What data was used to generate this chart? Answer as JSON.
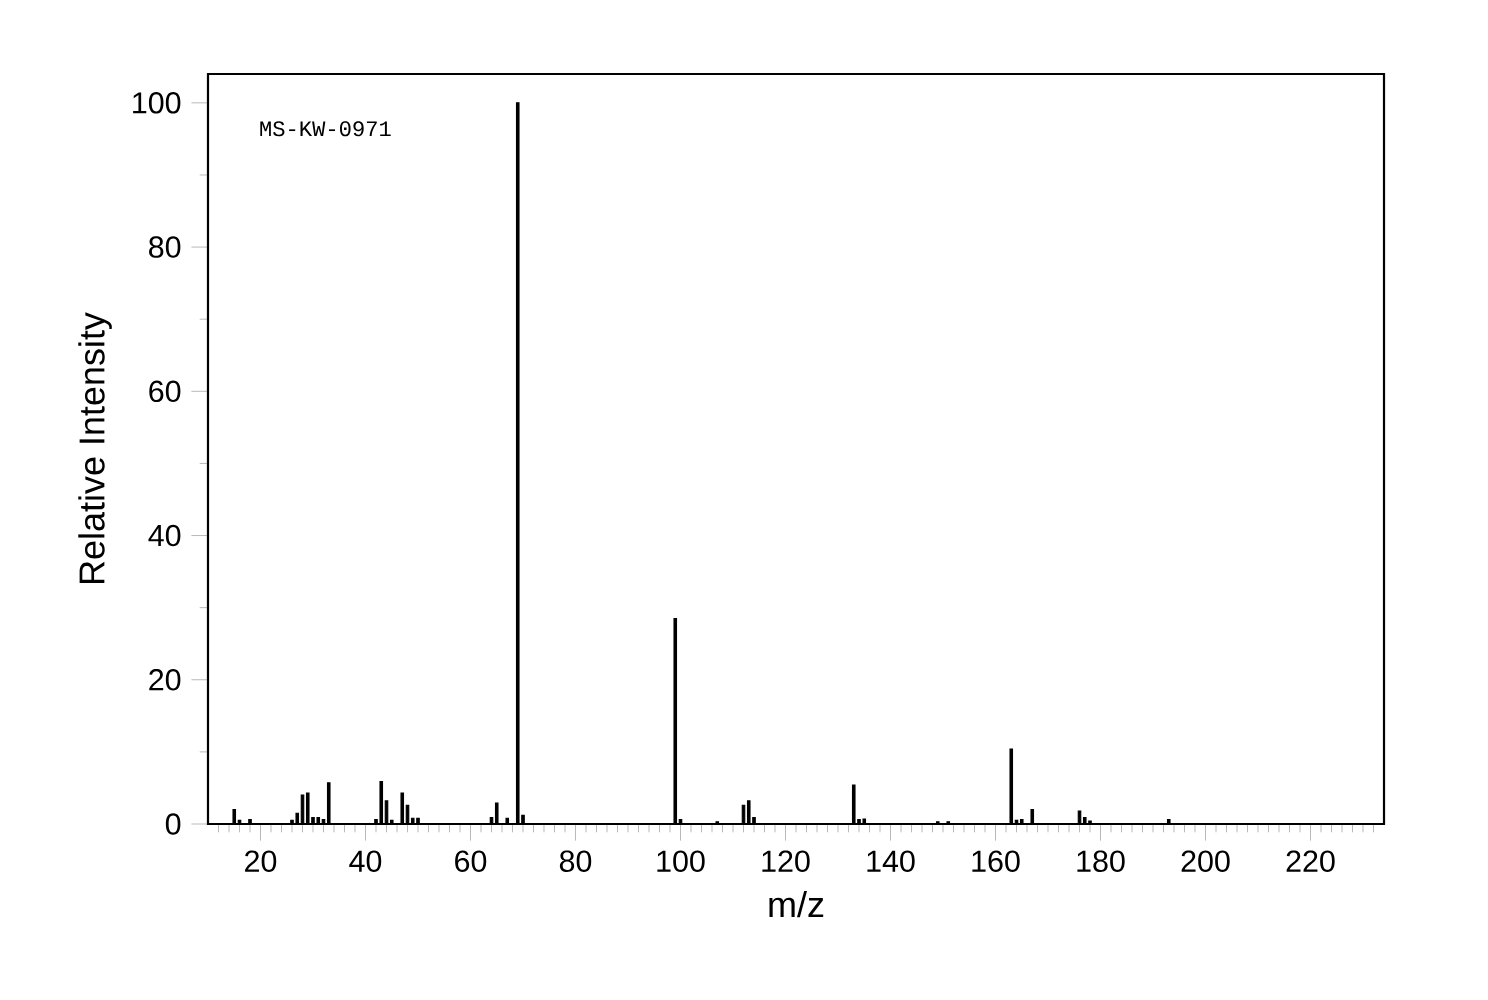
{
  "chart_data": {
    "type": "bar",
    "xlabel": "m/z",
    "ylabel": "Relative Intensity",
    "color": "#000000",
    "annotations": [
      "MS-KW-0971"
    ],
    "x": [
      15,
      16,
      18,
      26,
      27,
      28,
      29,
      30,
      31,
      32,
      33,
      42,
      43,
      44,
      45,
      47,
      48,
      49,
      50,
      64,
      65,
      67,
      69,
      70,
      99,
      100,
      107,
      112,
      113,
      114,
      133,
      134,
      135,
      149,
      151,
      163,
      164,
      165,
      167,
      176,
      177,
      178,
      193
    ],
    "values": [
      2.0,
      0.5,
      0.6,
      0.5,
      1.5,
      4.0,
      4.3,
      0.9,
      0.9,
      0.6,
      5.7,
      0.6,
      5.9,
      3.2,
      0.5,
      4.3,
      2.6,
      0.8,
      0.8,
      0.9,
      2.9,
      0.8,
      100,
      1.2,
      28.5,
      0.6,
      0.3,
      2.6,
      3.2,
      0.9,
      5.4,
      0.6,
      0.7,
      0.3,
      0.3,
      10.4,
      0.5,
      0.6,
      2.0,
      1.8,
      0.9,
      0.4,
      0.6
    ],
    "xlim": [
      10,
      234
    ],
    "ylim": [
      0,
      104
    ],
    "xticks": [
      {
        "value": 12,
        "label": null
      },
      {
        "value": 14,
        "label": null
      },
      {
        "value": 16,
        "label": null
      },
      {
        "value": 18,
        "label": null
      },
      20,
      {
        "value": 22,
        "label": null
      },
      {
        "value": 24,
        "label": null
      },
      {
        "value": 26,
        "label": null
      },
      {
        "value": 28,
        "label": null
      },
      {
        "value": 30,
        "label": null
      },
      {
        "value": 32,
        "label": null
      },
      {
        "value": 34,
        "label": null
      },
      {
        "value": 36,
        "label": null
      },
      {
        "value": 38,
        "label": null
      },
      40,
      {
        "value": 42,
        "label": null
      },
      {
        "value": 44,
        "label": null
      },
      {
        "value": 46,
        "label": null
      },
      {
        "value": 48,
        "label": null
      },
      {
        "value": 50,
        "label": null
      },
      {
        "value": 52,
        "label": null
      },
      {
        "value": 54,
        "label": null
      },
      {
        "value": 56,
        "label": null
      },
      {
        "value": 58,
        "label": null
      },
      60,
      {
        "value": 62,
        "label": null
      },
      {
        "value": 64,
        "label": null
      },
      {
        "value": 66,
        "label": null
      },
      {
        "value": 68,
        "label": null
      },
      {
        "value": 70,
        "label": null
      },
      {
        "value": 72,
        "label": null
      },
      {
        "value": 74,
        "label": null
      },
      {
        "value": 76,
        "label": null
      },
      {
        "value": 78,
        "label": null
      },
      80,
      {
        "value": 82,
        "label": null
      },
      {
        "value": 84,
        "label": null
      },
      {
        "value": 86,
        "label": null
      },
      {
        "value": 88,
        "label": null
      },
      {
        "value": 90,
        "label": null
      },
      {
        "value": 92,
        "label": null
      },
      {
        "value": 94,
        "label": null
      },
      {
        "value": 96,
        "label": null
      },
      {
        "value": 98,
        "label": null
      },
      100,
      {
        "value": 102,
        "label": null
      },
      {
        "value": 104,
        "label": null
      },
      {
        "value": 106,
        "label": null
      },
      {
        "value": 108,
        "label": null
      },
      {
        "value": 110,
        "label": null
      },
      {
        "value": 112,
        "label": null
      },
      {
        "value": 114,
        "label": null
      },
      {
        "value": 116,
        "label": null
      },
      {
        "value": 118,
        "label": null
      },
      120,
      {
        "value": 122,
        "label": null
      },
      {
        "value": 124,
        "label": null
      },
      {
        "value": 126,
        "label": null
      },
      {
        "value": 128,
        "label": null
      },
      {
        "value": 130,
        "label": null
      },
      {
        "value": 132,
        "label": null
      },
      {
        "value": 134,
        "label": null
      },
      {
        "value": 136,
        "label": null
      },
      {
        "value": 138,
        "label": null
      },
      140,
      {
        "value": 142,
        "label": null
      },
      {
        "value": 144,
        "label": null
      },
      {
        "value": 146,
        "label": null
      },
      {
        "value": 148,
        "label": null
      },
      {
        "value": 150,
        "label": null
      },
      {
        "value": 152,
        "label": null
      },
      {
        "value": 154,
        "label": null
      },
      {
        "value": 156,
        "label": null
      },
      {
        "value": 158,
        "label": null
      },
      160,
      {
        "value": 162,
        "label": null
      },
      {
        "value": 164,
        "label": null
      },
      {
        "value": 166,
        "label": null
      },
      {
        "value": 168,
        "label": null
      },
      {
        "value": 170,
        "label": null
      },
      {
        "value": 172,
        "label": null
      },
      {
        "value": 174,
        "label": null
      },
      {
        "value": 176,
        "label": null
      },
      {
        "value": 178,
        "label": null
      },
      180,
      {
        "value": 182,
        "label": null
      },
      {
        "value": 184,
        "label": null
      },
      {
        "value": 186,
        "label": null
      },
      {
        "value": 188,
        "label": null
      },
      {
        "value": 190,
        "label": null
      },
      {
        "value": 192,
        "label": null
      },
      {
        "value": 194,
        "label": null
      },
      {
        "value": 196,
        "label": null
      },
      {
        "value": 198,
        "label": null
      },
      200,
      {
        "value": 202,
        "label": null
      },
      {
        "value": 204,
        "label": null
      },
      {
        "value": 206,
        "label": null
      },
      {
        "value": 208,
        "label": null
      },
      {
        "value": 210,
        "label": null
      },
      {
        "value": 212,
        "label": null
      },
      {
        "value": 214,
        "label": null
      },
      {
        "value": 216,
        "label": null
      },
      {
        "value": 218,
        "label": null
      },
      220,
      {
        "value": 222,
        "label": null
      },
      {
        "value": 224,
        "label": null
      },
      {
        "value": 226,
        "label": null
      },
      {
        "value": 228,
        "label": null
      },
      {
        "value": 230,
        "label": null
      },
      {
        "value": 232,
        "label": null
      }
    ],
    "yticks": [
      0,
      {
        "value": 10,
        "label": null
      },
      20,
      {
        "value": 30,
        "label": null
      },
      40,
      {
        "value": 50,
        "label": null
      },
      60,
      {
        "value": 70,
        "label": null
      },
      80,
      {
        "value": 90,
        "label": null
      },
      100
    ]
  }
}
